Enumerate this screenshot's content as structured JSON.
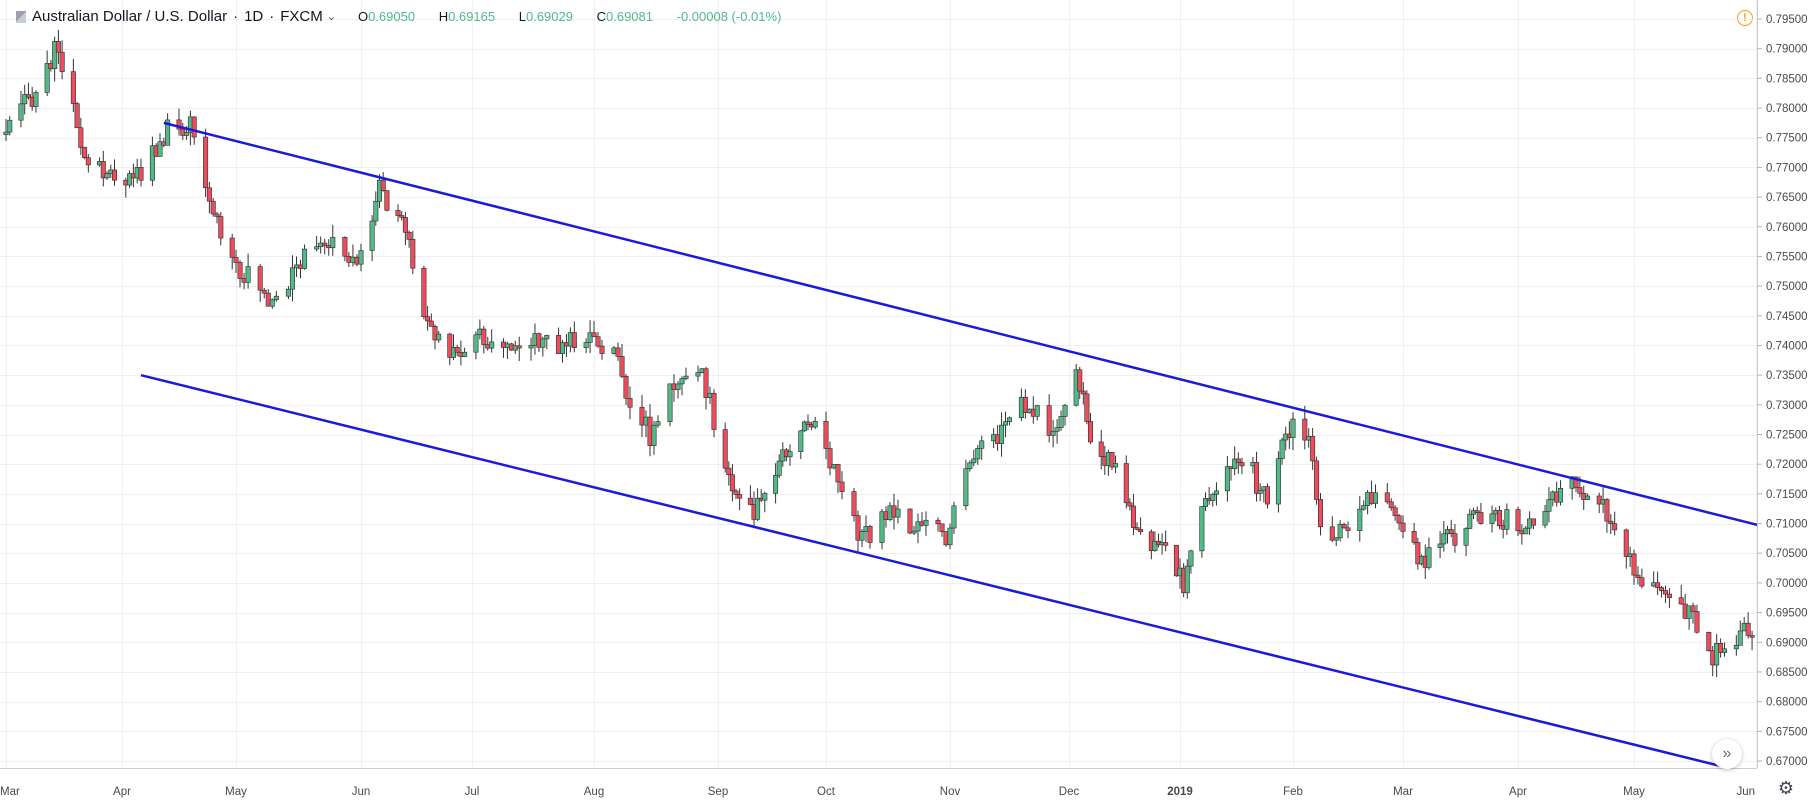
{
  "legend": {
    "symbol": "Australian Dollar / U.S. Dollar",
    "interval": "1D",
    "source": "FXCM",
    "open_key": "O",
    "open": "0.69050",
    "high_key": "H",
    "high": "0.69165",
    "low_key": "L",
    "low": "0.69029",
    "close_key": "C",
    "close": "0.69081",
    "change": "-0.00008 (-0.01%)"
  },
  "colors": {
    "up": "#53b987",
    "down": "#eb4d5c",
    "trendline": "#1a1adb",
    "grid": "#eef0f3",
    "axis_text": "#4a4a4a"
  },
  "icons": {
    "warning": "warning-icon",
    "scroll": "scroll-to-realtime-icon",
    "settings": "gear-icon"
  },
  "chart_data": {
    "type": "candlestick",
    "title": "Australian Dollar / U.S. Dollar · 1D · FXCM",
    "ylim": [
      0.668,
      0.797
    ],
    "y_ticks": [
      "0.79500",
      "0.79000",
      "0.78500",
      "0.78000",
      "0.77500",
      "0.77000",
      "0.76500",
      "0.76000",
      "0.75500",
      "0.75000",
      "0.74500",
      "0.74000",
      "0.73500",
      "0.73000",
      "0.72500",
      "0.72000",
      "0.71500",
      "0.71000",
      "0.70500",
      "0.70000",
      "0.69500",
      "0.69000",
      "0.68500",
      "0.68000",
      "0.67500",
      "0.67000"
    ],
    "x_ticks": [
      "Mar",
      "Apr",
      "May",
      "Jun",
      "Jul",
      "Aug",
      "Sep",
      "Oct",
      "Nov",
      "Dec",
      "2019",
      "Feb",
      "Mar",
      "Apr",
      "May",
      "Jun"
    ],
    "grid": true,
    "price_path": [
      [
        "2018-03-01",
        0.776
      ],
      [
        "2018-03-09",
        0.783
      ],
      [
        "2018-03-15",
        0.7905
      ],
      [
        "2018-03-22",
        0.77
      ],
      [
        "2018-03-30",
        0.768
      ],
      [
        "2018-04-06",
        0.769
      ],
      [
        "2018-04-12",
        0.776
      ],
      [
        "2018-04-19",
        0.777
      ],
      [
        "2018-04-23",
        0.765
      ],
      [
        "2018-05-02",
        0.753
      ],
      [
        "2018-05-09",
        0.748
      ],
      [
        "2018-05-15",
        0.752
      ],
      [
        "2018-05-23",
        0.758
      ],
      [
        "2018-05-31",
        0.754
      ],
      [
        "2018-06-06",
        0.766
      ],
      [
        "2018-06-13",
        0.759
      ],
      [
        "2018-06-19",
        0.744
      ],
      [
        "2018-06-26",
        0.738
      ],
      [
        "2018-07-05",
        0.742
      ],
      [
        "2018-07-11",
        0.738
      ],
      [
        "2018-07-17",
        0.742
      ],
      [
        "2018-07-23",
        0.74
      ],
      [
        "2018-07-30",
        0.742
      ],
      [
        "2018-08-06",
        0.739
      ],
      [
        "2018-08-10",
        0.731
      ],
      [
        "2018-08-15",
        0.725
      ],
      [
        "2018-08-21",
        0.733
      ],
      [
        "2018-08-28",
        0.735
      ],
      [
        "2018-09-04",
        0.718
      ],
      [
        "2018-09-11",
        0.711
      ],
      [
        "2018-09-18",
        0.72
      ],
      [
        "2018-09-27",
        0.728
      ],
      [
        "2018-10-03",
        0.72
      ],
      [
        "2018-10-10",
        0.707
      ],
      [
        "2018-10-17",
        0.712
      ],
      [
        "2018-10-25",
        0.709
      ],
      [
        "2018-10-31",
        0.708
      ],
      [
        "2018-11-06",
        0.722
      ],
      [
        "2018-11-13",
        0.725
      ],
      [
        "2018-11-19",
        0.731
      ],
      [
        "2018-11-27",
        0.725
      ],
      [
        "2018-12-03",
        0.737
      ],
      [
        "2018-12-07",
        0.725
      ],
      [
        "2018-12-14",
        0.719
      ],
      [
        "2018-12-21",
        0.708
      ],
      [
        "2018-12-28",
        0.705
      ],
      [
        "2019-01-02",
        0.7
      ],
      [
        "2019-01-07",
        0.712
      ],
      [
        "2019-01-14",
        0.72
      ],
      [
        "2019-01-21",
        0.718
      ],
      [
        "2019-01-25",
        0.713
      ],
      [
        "2019-01-31",
        0.727
      ],
      [
        "2019-02-05",
        0.724
      ],
      [
        "2019-02-08",
        0.708
      ],
      [
        "2019-02-14",
        0.71
      ],
      [
        "2019-02-21",
        0.715
      ],
      [
        "2019-02-27",
        0.71
      ],
      [
        "2019-03-06",
        0.703
      ],
      [
        "2019-03-12",
        0.707
      ],
      [
        "2019-03-19",
        0.71
      ],
      [
        "2019-03-27",
        0.711
      ],
      [
        "2019-04-03",
        0.71
      ],
      [
        "2019-04-10",
        0.715
      ],
      [
        "2019-04-16",
        0.717
      ],
      [
        "2019-04-22",
        0.714
      ],
      [
        "2019-04-29",
        0.704
      ],
      [
        "2019-05-03",
        0.701
      ],
      [
        "2019-05-09",
        0.698
      ],
      [
        "2019-05-16",
        0.694
      ],
      [
        "2019-05-21",
        0.688
      ],
      [
        "2019-05-28",
        0.691
      ],
      [
        "2019-06-03",
        0.6925
      ]
    ],
    "annotations": {
      "upper_trendline": {
        "from": [
          "2018-04-12",
          0.7775
        ],
        "to": [
          "2019-06-03",
          0.7095
        ]
      },
      "lower_trendline": {
        "from": [
          "2018-04-06",
          0.735
        ],
        "to": [
          "2019-05-30",
          0.668
        ]
      }
    }
  }
}
